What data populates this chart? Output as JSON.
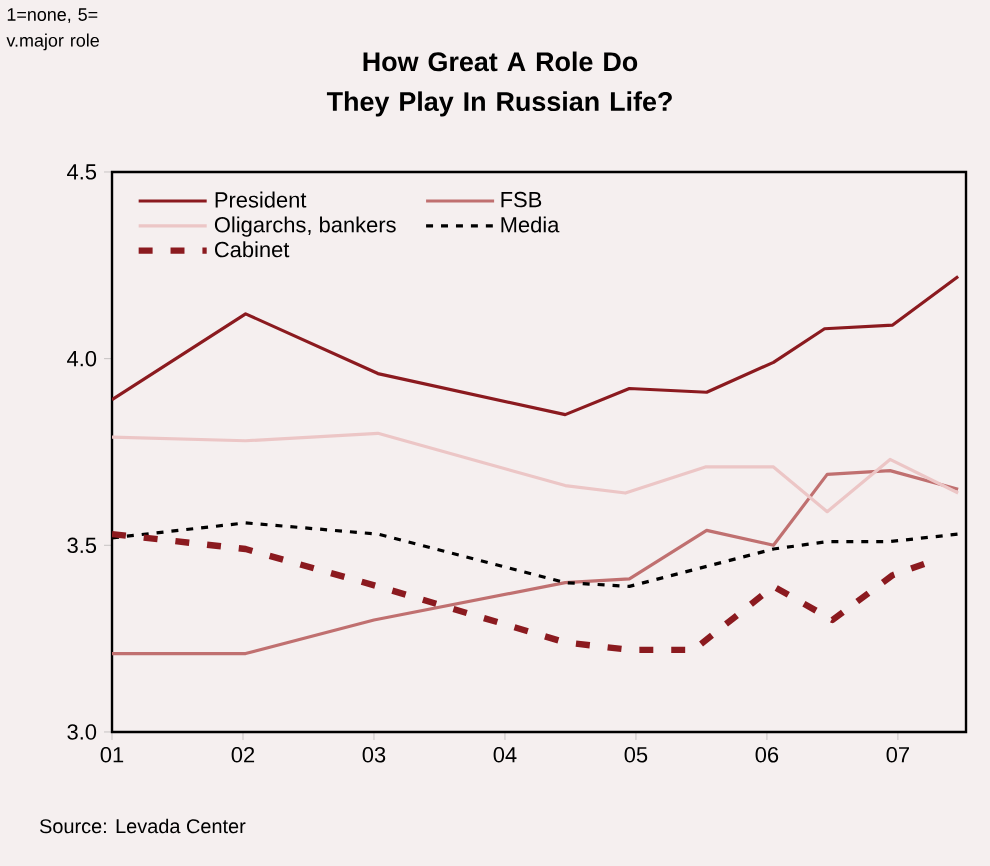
{
  "chart_data": {
    "type": "line",
    "title": "How Great A Role Do They Play In Russian Life?",
    "annotations": [
      "1=none, 5= v.major role",
      "Source: Levada Center"
    ],
    "xlim": [
      1,
      7.52
    ],
    "xticks": [
      {
        "value": 1,
        "label": "01"
      },
      {
        "value": 2,
        "label": "02"
      },
      {
        "value": 3,
        "label": "03"
      },
      {
        "value": 4,
        "label": "04"
      },
      {
        "value": 5,
        "label": "05"
      },
      {
        "value": 6,
        "label": "06"
      },
      {
        "value": 7,
        "label": "07"
      }
    ],
    "ylim": [
      3.0,
      4.5
    ],
    "yticks": [
      {
        "value": 3.0,
        "label": "3.0"
      },
      {
        "value": 3.5,
        "label": "3.5"
      },
      {
        "value": 4.0,
        "label": "4.0"
      },
      {
        "value": 4.5,
        "label": "4.5"
      }
    ],
    "grid": false,
    "legend": "top left",
    "marker": "none",
    "series": [
      {
        "name": "President",
        "color": "#8b1a1f",
        "line_style": "solid",
        "x": [
          1.0,
          2.02,
          3.03,
          4.46,
          4.95,
          5.54,
          6.05,
          6.44,
          6.96,
          7.46
        ],
        "values": [
          3.89,
          4.12,
          3.96,
          3.85,
          3.92,
          3.91,
          3.99,
          4.08,
          4.09,
          4.22
        ]
      },
      {
        "name": "FSB",
        "color": "#c07070",
        "line_style": "solid",
        "x": [
          1.0,
          2.02,
          3.0,
          4.46,
          4.95,
          5.54,
          6.05,
          6.46,
          6.94,
          7.46
        ],
        "values": [
          3.21,
          3.21,
          3.3,
          3.4,
          3.41,
          3.54,
          3.5,
          3.69,
          3.7,
          3.65
        ]
      },
      {
        "name": "Oligarchs, bankers",
        "color": "#ecc6c6",
        "line_style": "solid",
        "x": [
          1.0,
          2.02,
          3.03,
          4.46,
          4.92,
          5.53,
          6.05,
          6.46,
          6.94,
          7.46
        ],
        "values": [
          3.79,
          3.78,
          3.8,
          3.66,
          3.64,
          3.71,
          3.71,
          3.59,
          3.73,
          3.64
        ]
      },
      {
        "name": "Media",
        "color": "#000000",
        "line_style": "dotted",
        "x": [
          1.0,
          2.02,
          3.03,
          4.46,
          4.95,
          6.05,
          6.46,
          6.94,
          7.46
        ],
        "values": [
          3.52,
          3.56,
          3.53,
          3.4,
          3.39,
          3.49,
          3.51,
          3.51,
          3.53
        ]
      },
      {
        "name": "Cabinet",
        "color": "#8b1a1f",
        "line_style": "dashed",
        "x": [
          1.0,
          2.02,
          3.03,
          4.46,
          4.95,
          5.44,
          6.05,
          6.5,
          6.96,
          7.2
        ],
        "values": [
          3.53,
          3.49,
          3.39,
          3.24,
          3.22,
          3.22,
          3.39,
          3.3,
          3.42,
          3.45
        ]
      }
    ]
  }
}
